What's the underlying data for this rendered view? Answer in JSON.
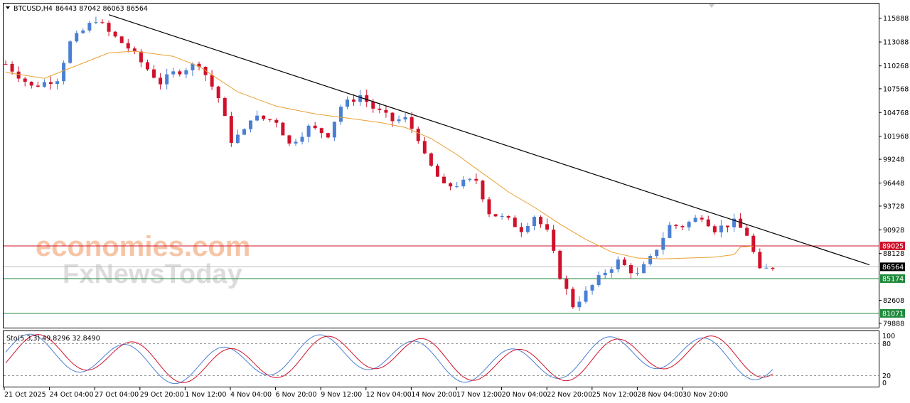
{
  "header": {
    "symbol": "BTCUSD,H4",
    "ohlc": "86443 87042 86063 86564"
  },
  "watermark": {
    "line1": "economies.com",
    "line2": "FxNewsToday"
  },
  "indicator": {
    "label": "Sto(5,3,3) 49.8296 32.8490",
    "levels": [
      "100",
      "80",
      "20",
      "0"
    ]
  },
  "chart_data": [
    {
      "type": "candlestick",
      "title": "BTCUSD,H4",
      "colors": {
        "bull": "#4a7fd4",
        "bear": "#d0112b",
        "ma": "#e8a030",
        "trendline": "#000000"
      },
      "y_ticks": [
        "115888",
        "113088",
        "110268",
        "107568",
        "104768",
        "101968",
        "99248",
        "96448",
        "93728",
        "90928",
        "88128",
        "82608",
        "79888"
      ],
      "ylim": [
        79888,
        117200
      ],
      "x_ticks": [
        "21 Oct 2025",
        "24 Oct 04:00",
        "27 Oct 04:00",
        "29 Oct 20:00",
        "1 Nov 12:00",
        "4 Nov 04:00",
        "6 Nov 20:00",
        "9 Nov 12:00",
        "12 Nov 04:00",
        "14 Nov 20:00",
        "17 Nov 12:00",
        "20 Nov 04:00",
        "22 Nov 20:00",
        "25 Nov 12:00",
        "28 Nov 04:00",
        "30 Nov 20:00"
      ],
      "price_path": [
        [
          0,
          110500
        ],
        [
          4,
          107800
        ],
        [
          8,
          108800
        ],
        [
          10,
          113000
        ],
        [
          14,
          115800
        ],
        [
          16,
          114200
        ],
        [
          19,
          112400
        ],
        [
          21,
          110700
        ],
        [
          24,
          108300
        ],
        [
          26,
          109400
        ],
        [
          30,
          110600
        ],
        [
          33,
          106500
        ],
        [
          35,
          101500
        ],
        [
          37,
          102500
        ],
        [
          38,
          104200
        ],
        [
          42,
          103800
        ],
        [
          44,
          101000
        ],
        [
          47,
          103000
        ],
        [
          50,
          102200
        ],
        [
          52,
          105500
        ],
        [
          55,
          106800
        ],
        [
          57,
          105300
        ],
        [
          60,
          103800
        ],
        [
          62,
          104000
        ],
        [
          64,
          101800
        ],
        [
          65,
          99500
        ],
        [
          68,
          96000
        ],
        [
          70,
          96300
        ],
        [
          73,
          96800
        ],
        [
          75,
          93000
        ],
        [
          78,
          92000
        ],
        [
          80,
          91000
        ],
        [
          82,
          92600
        ],
        [
          84,
          90600
        ],
        [
          86,
          85500
        ],
        [
          88,
          82000
        ],
        [
          90,
          83500
        ],
        [
          93,
          86000
        ],
        [
          95,
          87200
        ],
        [
          98,
          85600
        ],
        [
          100,
          87500
        ],
        [
          103,
          91400
        ],
        [
          105,
          91400
        ],
        [
          108,
          92600
        ],
        [
          110,
          91000
        ],
        [
          113,
          91800
        ],
        [
          115,
          90400
        ],
        [
          117,
          86000
        ],
        [
          119,
          86564
        ]
      ],
      "series": [
        {
          "name": "MA",
          "values": [
            [
              0,
              109500
            ],
            [
              6,
              108800
            ],
            [
              10,
              110000
            ],
            [
              16,
              111800
            ],
            [
              20,
              112000
            ],
            [
              26,
              111400
            ],
            [
              30,
              110200
            ],
            [
              36,
              107200
            ],
            [
              42,
              105500
            ],
            [
              48,
              104600
            ],
            [
              54,
              104000
            ],
            [
              58,
              103600
            ],
            [
              62,
              103000
            ],
            [
              66,
              101700
            ],
            [
              70,
              99800
            ],
            [
              74,
              97600
            ],
            [
              78,
              95400
            ],
            [
              82,
              93600
            ],
            [
              86,
              91600
            ],
            [
              90,
              89800
            ],
            [
              94,
              88300
            ],
            [
              98,
              87600
            ],
            [
              102,
              87500
            ],
            [
              106,
              87600
            ],
            [
              110,
              87700
            ],
            [
              113,
              88000
            ],
            [
              114,
              88900
            ],
            [
              116,
              89000
            ]
          ]
        },
        {
          "name": "Trendline",
          "values": [
            [
              16,
              116300
            ],
            [
              134,
              86800
            ]
          ]
        }
      ],
      "levels": [
        {
          "value": 89025,
          "label": "89025",
          "color": "#d0112b"
        },
        {
          "value": 86564,
          "label": "86564",
          "color": "#000000"
        },
        {
          "value": 85174,
          "label": "85174",
          "color": "#1f8a3c"
        },
        {
          "value": 81071,
          "label": "81071",
          "color": "#1f8a3c"
        }
      ],
      "stochastic": {
        "main_color": "#4a7fd4",
        "signal_color": "#d0112b",
        "upper": 80,
        "lower": 20
      }
    }
  ]
}
